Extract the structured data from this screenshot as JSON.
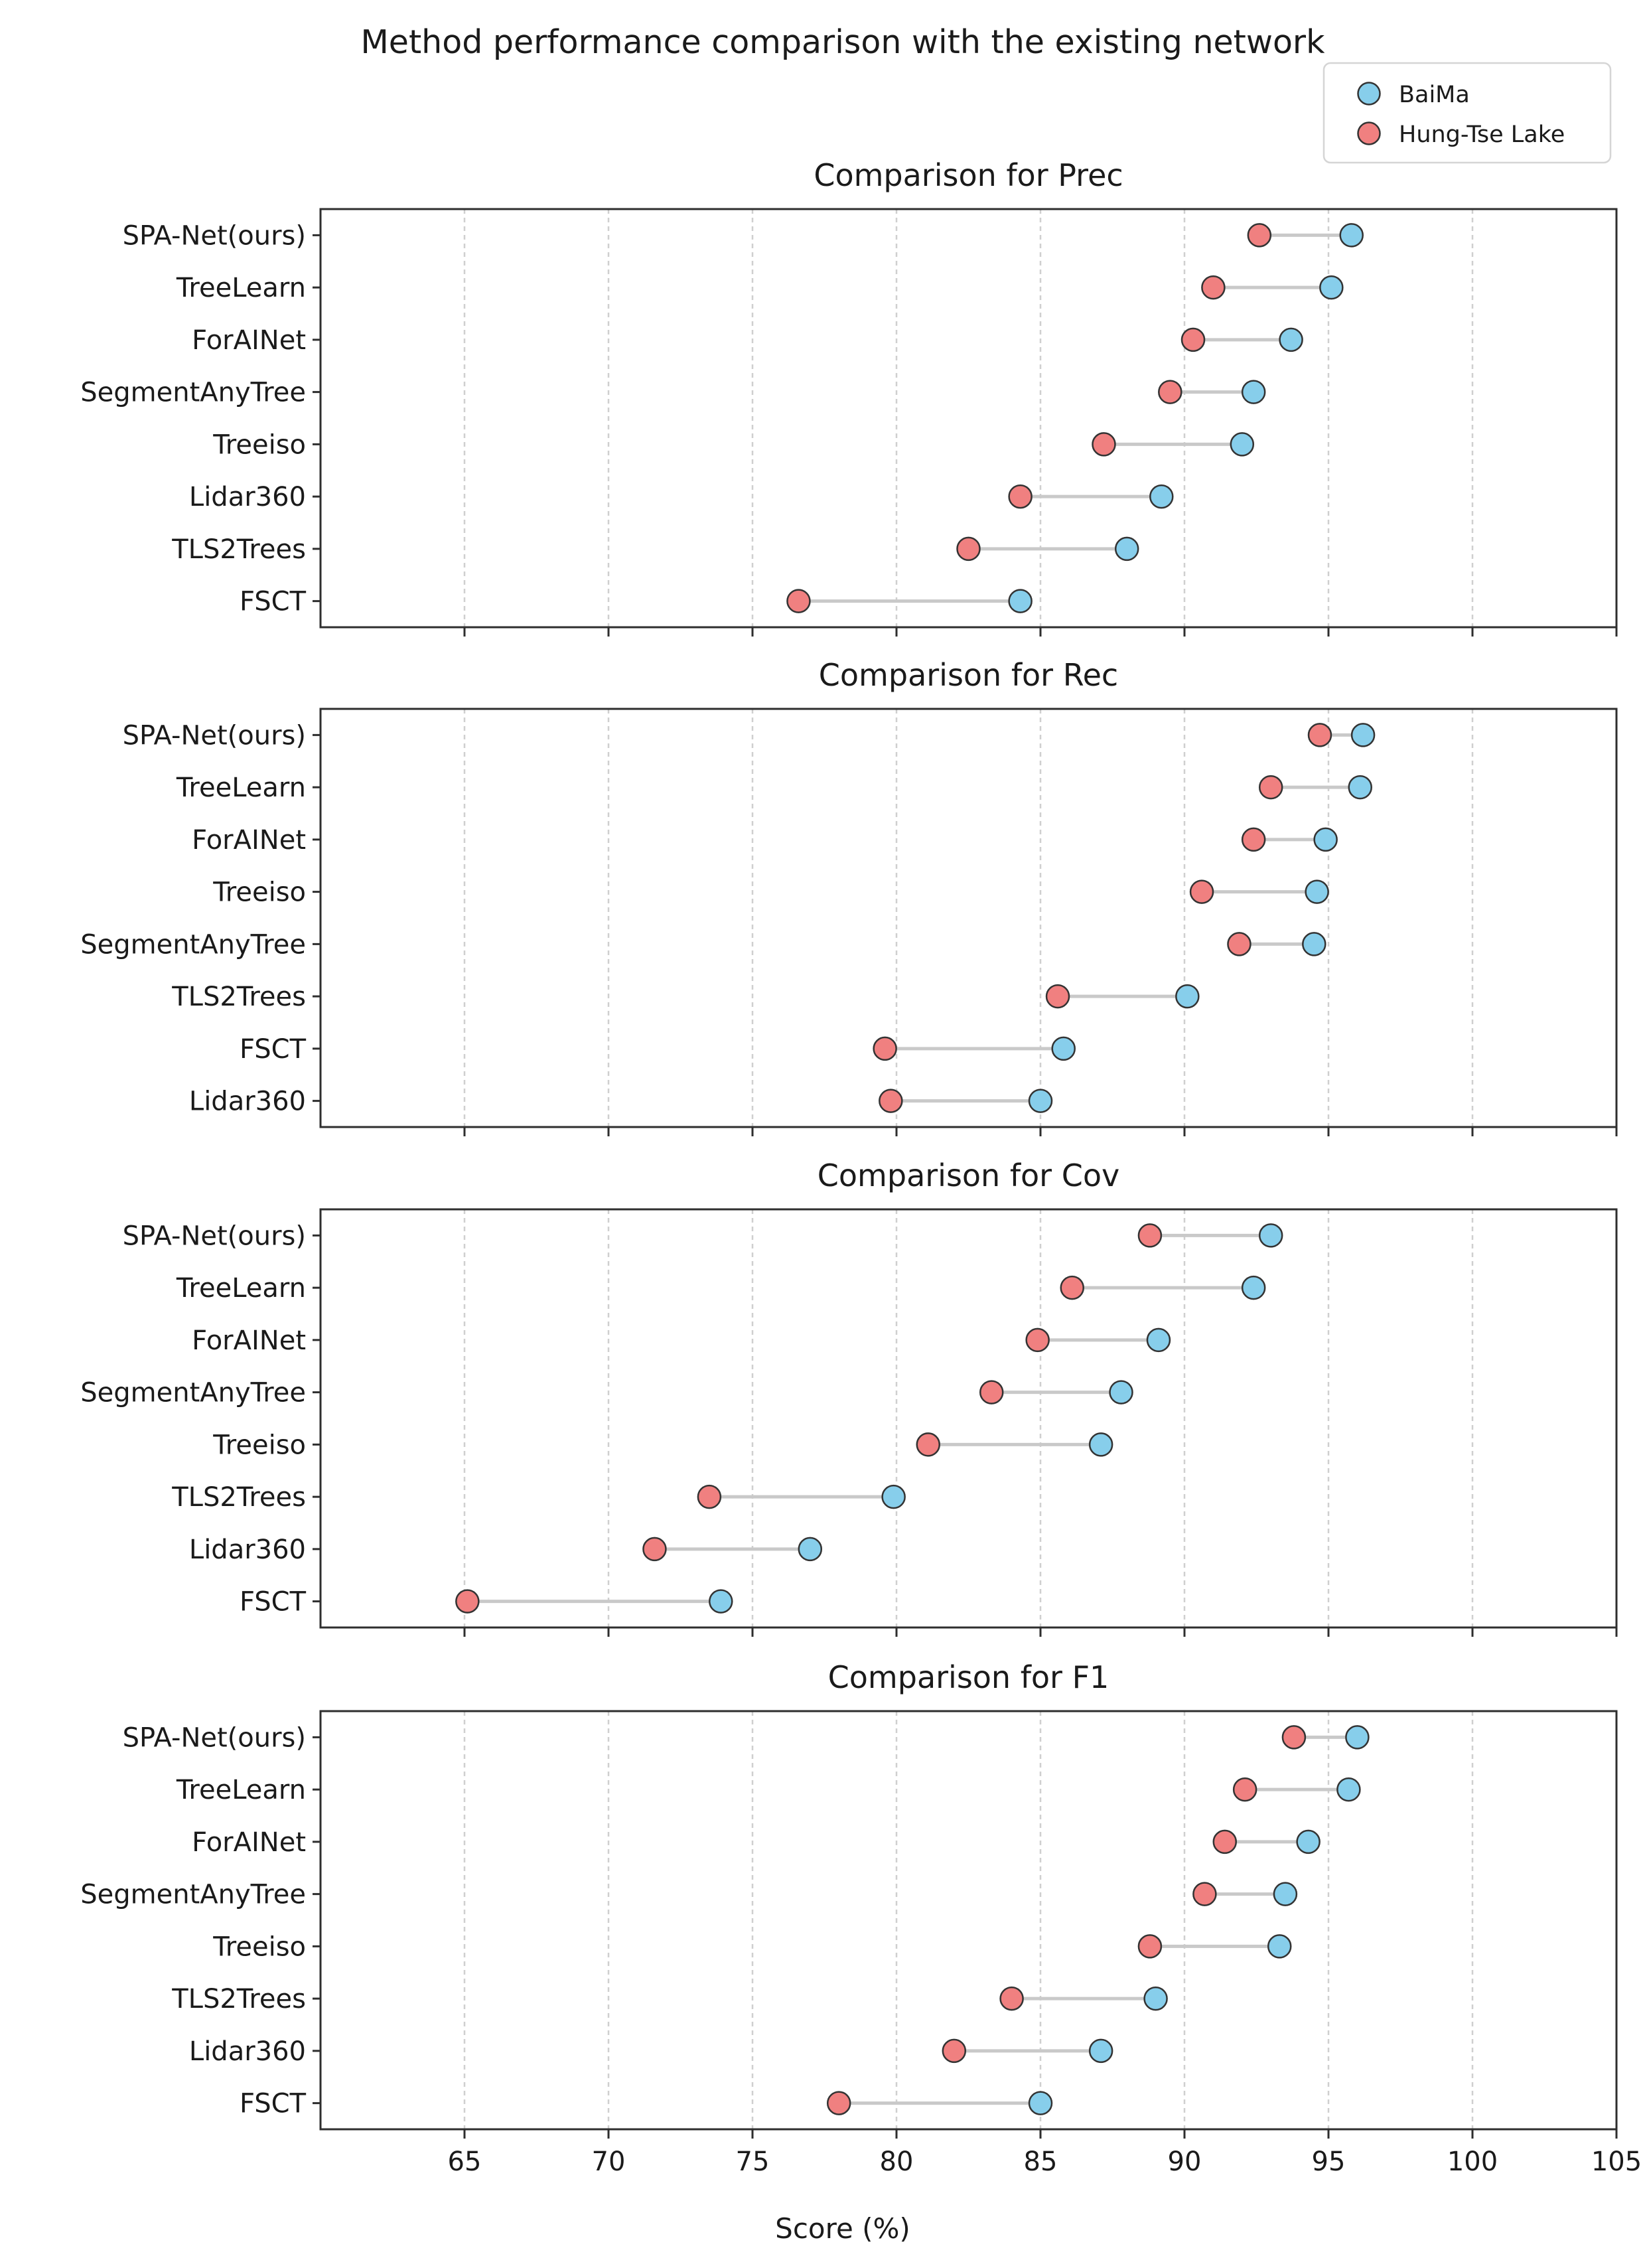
{
  "figure": {
    "title": "Method performance comparison with the existing network",
    "xlabel": "Score (%)",
    "legend": {
      "items": [
        {
          "label": "BaiMa",
          "color": "#87CEEB"
        },
        {
          "label": "Hung-Tse Lake",
          "color": "#F08080"
        }
      ],
      "position": "top-right"
    },
    "colors": {
      "baima": "#87CEEB",
      "hungtse": "#F08080",
      "marker_edge": "#333333",
      "connector": "#c9c9c9",
      "grid": "#cfcfcf",
      "frame": "#2e2e2e"
    }
  },
  "chart_data": [
    {
      "type": "scatter",
      "subtype": "dumbbell",
      "title": "Comparison for Prec",
      "categories": [
        "SPA-Net(ours)",
        "TreeLearn",
        "ForAINet",
        "SegmentAnyTree",
        "Treeiso",
        "Lidar360",
        "TLS2Trees",
        "FSCT"
      ],
      "series": [
        {
          "name": "BaiMa",
          "values": [
            95.8,
            95.1,
            93.7,
            92.4,
            92.0,
            89.2,
            88.0,
            84.3
          ]
        },
        {
          "name": "Hung-Tse Lake",
          "values": [
            92.6,
            91.0,
            90.3,
            89.5,
            87.2,
            84.3,
            82.5,
            76.6
          ]
        }
      ],
      "xlim": [
        60,
        105
      ],
      "xticks": [
        65,
        70,
        75,
        80,
        85,
        90,
        95,
        100,
        105
      ],
      "grid": "vertical-dashed",
      "show_xtick_labels": false
    },
    {
      "type": "scatter",
      "subtype": "dumbbell",
      "title": "Comparison for Rec",
      "categories": [
        "SPA-Net(ours)",
        "TreeLearn",
        "ForAINet",
        "Treeiso",
        "SegmentAnyTree",
        "TLS2Trees",
        "FSCT",
        "Lidar360"
      ],
      "series": [
        {
          "name": "BaiMa",
          "values": [
            96.2,
            96.1,
            94.9,
            94.6,
            94.5,
            90.1,
            85.8,
            85.0
          ]
        },
        {
          "name": "Hung-Tse Lake",
          "values": [
            94.7,
            93.0,
            92.4,
            90.6,
            91.9,
            85.6,
            79.6,
            79.8
          ]
        }
      ],
      "xlim": [
        60,
        105
      ],
      "xticks": [
        65,
        70,
        75,
        80,
        85,
        90,
        95,
        100,
        105
      ],
      "grid": "vertical-dashed",
      "show_xtick_labels": false
    },
    {
      "type": "scatter",
      "subtype": "dumbbell",
      "title": "Comparison for Cov",
      "categories": [
        "SPA-Net(ours)",
        "TreeLearn",
        "ForAINet",
        "SegmentAnyTree",
        "Treeiso",
        "TLS2Trees",
        "Lidar360",
        "FSCT"
      ],
      "series": [
        {
          "name": "BaiMa",
          "values": [
            93.0,
            92.4,
            89.1,
            87.8,
            87.1,
            79.9,
            77.0,
            73.9
          ]
        },
        {
          "name": "Hung-Tse Lake",
          "values": [
            88.8,
            86.1,
            84.9,
            83.3,
            81.1,
            73.5,
            71.6,
            65.1
          ]
        }
      ],
      "xlim": [
        60,
        105
      ],
      "xticks": [
        65,
        70,
        75,
        80,
        85,
        90,
        95,
        100,
        105
      ],
      "grid": "vertical-dashed",
      "show_xtick_labels": false
    },
    {
      "type": "scatter",
      "subtype": "dumbbell",
      "title": "Comparison for F1",
      "categories": [
        "SPA-Net(ours)",
        "TreeLearn",
        "ForAINet",
        "SegmentAnyTree",
        "Treeiso",
        "TLS2Trees",
        "Lidar360",
        "FSCT"
      ],
      "series": [
        {
          "name": "BaiMa",
          "values": [
            96.0,
            95.7,
            94.3,
            93.5,
            93.3,
            89.0,
            87.1,
            85.0
          ]
        },
        {
          "name": "Hung-Tse Lake",
          "values": [
            93.8,
            92.1,
            91.4,
            90.7,
            88.8,
            84.0,
            82.0,
            78.0
          ]
        }
      ],
      "xlim": [
        60,
        105
      ],
      "xticks": [
        65,
        70,
        75,
        80,
        85,
        90,
        95,
        100,
        105
      ],
      "grid": "vertical-dashed",
      "show_xtick_labels": true
    }
  ]
}
